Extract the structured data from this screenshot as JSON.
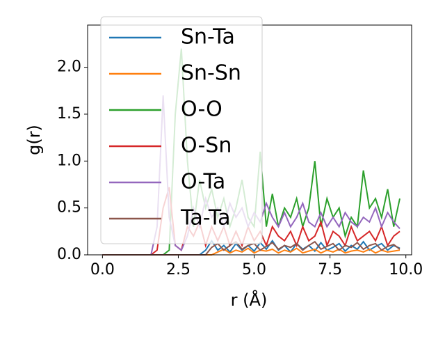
{
  "chart_data": {
    "type": "line",
    "xlabel": "r (Å)",
    "ylabel": "g(r)",
    "x": [
      0,
      0.2,
      0.4,
      0.6,
      0.8,
      1.0,
      1.2,
      1.4,
      1.6,
      1.8,
      2.0,
      2.2,
      2.4,
      2.6,
      2.8,
      3.0,
      3.2,
      3.4,
      3.6,
      3.8,
      4.0,
      4.2,
      4.4,
      4.6,
      4.8,
      5.0,
      5.2,
      5.4,
      5.6,
      5.8,
      6.0,
      6.2,
      6.4,
      6.6,
      6.8,
      7.0,
      7.2,
      7.4,
      7.6,
      7.8,
      8.0,
      8.2,
      8.4,
      8.6,
      8.8,
      9.0,
      9.2,
      9.4,
      9.6,
      9.8
    ],
    "series": [
      {
        "name": "Sn-Ta",
        "color": "#1f77b4",
        "values": [
          0,
          0,
          0,
          0,
          0,
          0,
          0,
          0,
          0,
          0,
          0,
          0,
          0,
          0,
          0,
          0,
          0,
          0.05,
          0.15,
          0.05,
          0.1,
          0.03,
          0.12,
          0.05,
          0.1,
          0.04,
          0.13,
          0.06,
          0.15,
          0.05,
          0.1,
          0.03,
          0.12,
          0.06,
          0.1,
          0.04,
          0.13,
          0.05,
          0.08,
          0.12,
          0.04,
          0.1,
          0.06,
          0.14,
          0.05,
          0.09,
          0.12,
          0.05,
          0.1,
          0.07
        ]
      },
      {
        "name": "Sn-Sn",
        "color": "#ff7f0e",
        "values": [
          0,
          0,
          0,
          0,
          0,
          0,
          0,
          0,
          0,
          0,
          0,
          0,
          0,
          0,
          0,
          0,
          0,
          0,
          0,
          0.03,
          0.06,
          0.02,
          0.05,
          0.03,
          0.07,
          0.02,
          0.05,
          0.04,
          0.06,
          0.02,
          0.05,
          0.03,
          0.07,
          0.02,
          0.04,
          0.06,
          0.02,
          0.05,
          0.03,
          0.06,
          0.02,
          0.04,
          0.05,
          0.03,
          0.06,
          0.02,
          0.05,
          0.03,
          0.04,
          0.05
        ]
      },
      {
        "name": "O-O",
        "color": "#2ca02c",
        "values": [
          0,
          0,
          0,
          0,
          0,
          0,
          0,
          0,
          0,
          0,
          0,
          0.05,
          1.5,
          2.2,
          1.0,
          0.3,
          0.8,
          0.5,
          0.7,
          0.4,
          0.6,
          0.3,
          0.5,
          0.8,
          0.4,
          0.3,
          1.1,
          0.3,
          0.65,
          0.3,
          0.5,
          0.4,
          0.6,
          0.3,
          0.5,
          1.0,
          0.3,
          0.6,
          0.4,
          0.5,
          0.2,
          0.4,
          0.3,
          0.9,
          0.5,
          0.6,
          0.4,
          0.7,
          0.3,
          0.6
        ]
      },
      {
        "name": "O-Sn",
        "color": "#d62728",
        "values": [
          0,
          0,
          0,
          0,
          0,
          0,
          0,
          0,
          0,
          0.05,
          0.5,
          0.72,
          0.1,
          0.05,
          0.3,
          0.2,
          0.35,
          0.1,
          0.3,
          0.15,
          0.3,
          0.1,
          0.25,
          0.1,
          0.3,
          0.15,
          0.25,
          0.1,
          0.3,
          0.2,
          0.15,
          0.25,
          0.1,
          0.3,
          0.15,
          0.2,
          0.35,
          0.1,
          0.25,
          0.2,
          0.1,
          0.3,
          0.15,
          0.2,
          0.25,
          0.15,
          0.3,
          0.1,
          0.2,
          0.25
        ]
      },
      {
        "name": "O-Ta",
        "color": "#9467bd",
        "values": [
          0,
          0,
          0,
          0,
          0,
          0,
          0,
          0,
          0,
          0.3,
          1.7,
          0.4,
          0.1,
          0.05,
          0.2,
          0.5,
          0.3,
          0.6,
          0.4,
          0.5,
          0.3,
          0.55,
          0.4,
          0.5,
          0.3,
          0.45,
          0.35,
          0.55,
          0.4,
          0.3,
          0.45,
          0.3,
          0.4,
          0.55,
          0.35,
          0.3,
          0.45,
          0.3,
          0.4,
          0.3,
          0.45,
          0.35,
          0.3,
          0.4,
          0.35,
          0.5,
          0.3,
          0.45,
          0.35,
          0.28
        ]
      },
      {
        "name": "Ta-Ta",
        "color": "#8c564b",
        "values": [
          0,
          0,
          0,
          0,
          0,
          0,
          0,
          0,
          0,
          0,
          0,
          0,
          0,
          0,
          0,
          0,
          0,
          0,
          0.08,
          0.12,
          0.05,
          0.1,
          0.14,
          0.06,
          0.1,
          0.12,
          0.05,
          0.09,
          0.13,
          0.06,
          0.1,
          0.08,
          0.12,
          0.05,
          0.1,
          0.14,
          0.06,
          0.09,
          0.12,
          0.05,
          0.1,
          0.08,
          0.13,
          0.06,
          0.1,
          0.12,
          0.05,
          0.09,
          0.11,
          0.06
        ]
      }
    ],
    "xlim": [
      -0.49,
      10.19
    ],
    "xticks": [
      {
        "value": 0,
        "label": "0.0"
      },
      {
        "value": 2.5,
        "label": "2.5"
      },
      {
        "value": 5,
        "label": "5.0"
      },
      {
        "value": 7.5,
        "label": "7.5"
      },
      {
        "value": 10,
        "label": "10.0"
      }
    ],
    "ylim": [
      0,
      2.45
    ],
    "yticks": [
      {
        "value": 0,
        "label": "0.0"
      },
      {
        "value": 0.5,
        "label": "0.5"
      },
      {
        "value": 1,
        "label": "1.0"
      },
      {
        "value": 1.5,
        "label": "1.5"
      },
      {
        "value": 2,
        "label": "2.0"
      }
    ],
    "legend": "upper left"
  }
}
